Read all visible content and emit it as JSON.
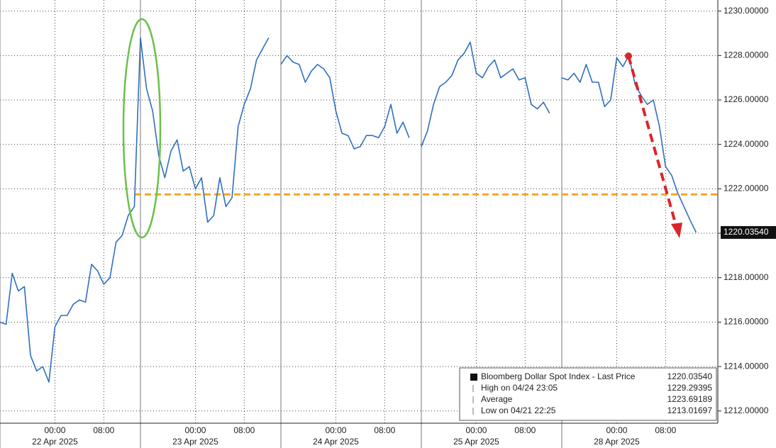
{
  "chart_data": {
    "type": "line",
    "categories": [
      null,
      null,
      null,
      null,
      null,
      null,
      null,
      null,
      null,
      "00:00",
      null,
      null,
      null,
      null,
      null,
      null,
      null,
      "08:00",
      null,
      null,
      null,
      null,
      null,
      null,
      null,
      null,
      null,
      null,
      null,
      null,
      null,
      null,
      "00:00",
      null,
      null,
      null,
      null,
      null,
      null,
      null,
      "08:00",
      null,
      null,
      null,
      null,
      null,
      null,
      null,
      null,
      null,
      null,
      null,
      null,
      null,
      null,
      "00:00",
      null,
      null,
      null,
      null,
      null,
      null,
      null,
      "08:00",
      null,
      null,
      null,
      null,
      null,
      null,
      null,
      null,
      null,
      null,
      null,
      null,
      null,
      null,
      "00:00",
      null,
      null,
      null,
      null,
      null,
      null,
      null,
      "08:00",
      null,
      null,
      null,
      null,
      null,
      null,
      null,
      null,
      null,
      null,
      null,
      null,
      null,
      null,
      "00:00",
      null,
      null,
      null,
      null,
      null,
      null,
      null,
      "08:00",
      null,
      null,
      null,
      null,
      null
    ],
    "dates": [
      null,
      null,
      null,
      null,
      null,
      null,
      null,
      null,
      null,
      "22 Apr 2025",
      null,
      null,
      null,
      null,
      null,
      null,
      null,
      null,
      null,
      null,
      null,
      null,
      null,
      null,
      null,
      null,
      null,
      null,
      null,
      null,
      null,
      null,
      "23 Apr 2025",
      null,
      null,
      null,
      null,
      null,
      null,
      null,
      null,
      null,
      null,
      null,
      null,
      null,
      null,
      null,
      null,
      null,
      null,
      null,
      null,
      null,
      null,
      "24 Apr 2025",
      null,
      null,
      null,
      null,
      null,
      null,
      null,
      null,
      null,
      null,
      null,
      null,
      null,
      null,
      null,
      null,
      null,
      null,
      null,
      null,
      null,
      null,
      "25 Apr 2025",
      null,
      null,
      null,
      null,
      null,
      null,
      null,
      null,
      null,
      null,
      null,
      null,
      null,
      null,
      null,
      null,
      null,
      null,
      null,
      null,
      null,
      null,
      "28 Apr 2025",
      null,
      null,
      null,
      null,
      null,
      null,
      null,
      null,
      null,
      null,
      null,
      null,
      null
    ],
    "series": [
      {
        "name": "Bloomberg Dollar Spot Index - Last Price",
        "color": "#2f6fbf",
        "values": [
          1216.0,
          1215.9,
          1218.2,
          1217.4,
          1217.6,
          1214.5,
          1213.8,
          1214.0,
          1213.3,
          1215.8,
          1216.3,
          1216.3,
          1216.8,
          1217.0,
          1216.9,
          1218.6,
          1218.3,
          1217.7,
          1218.0,
          1219.6,
          1219.9,
          1220.8,
          1221.2,
          1228.8,
          1226.5,
          1225.5,
          1223.5,
          1222.5,
          1223.7,
          1224.2,
          1222.8,
          1223.0,
          1222.0,
          1222.5,
          1220.5,
          1220.8,
          1222.5,
          1221.2,
          1221.6,
          1224.8,
          1225.8,
          1226.5,
          1227.8,
          1228.3,
          1228.8,
          null,
          1227.6,
          1228.0,
          1227.7,
          1227.6,
          1226.8,
          1227.3,
          1227.6,
          1227.4,
          1227.0,
          1225.5,
          1224.5,
          1224.4,
          1223.8,
          1223.9,
          1224.4,
          1224.4,
          1224.3,
          1224.8,
          1225.8,
          1224.5,
          1225.0,
          1224.3,
          null,
          1223.9,
          1224.6,
          1225.8,
          1226.6,
          1226.8,
          1227.1,
          1227.8,
          1228.1,
          1228.6,
          1227.2,
          1227.0,
          1227.5,
          1227.8,
          1227.0,
          1227.2,
          1227.4,
          1226.9,
          1227.0,
          1225.8,
          1225.6,
          1225.9,
          1225.4,
          null,
          1227.0,
          1226.9,
          1227.2,
          1226.8,
          1227.6,
          1226.8,
          1226.8,
          1225.7,
          1226.0,
          1227.9,
          1227.5,
          1228.0,
          1226.7,
          1226.2,
          1225.8,
          1226.0,
          1224.8,
          1223.0,
          1222.6,
          1221.8,
          1221.2,
          1220.6,
          1220.0354
        ]
      }
    ],
    "last_price_label": "1220.03540",
    "reference_line": {
      "value": 1221.75,
      "color": "#f5a623"
    },
    "ylim": [
      1211.45,
      1230.5
    ],
    "yticks": [
      {
        "value": 1212,
        "label": "1212.00000"
      },
      {
        "value": 1214,
        "label": "1214.00000"
      },
      {
        "value": 1216,
        "label": "1216.00000"
      },
      {
        "value": 1218,
        "label": "1218.00000"
      },
      {
        "value": 1220,
        "label": "1220.00000"
      },
      {
        "value": 1222,
        "label": "1222.00000"
      },
      {
        "value": 1224,
        "label": "1224.00000"
      },
      {
        "value": 1226,
        "label": "1226.00000"
      },
      {
        "value": 1228,
        "label": "1228.00000"
      },
      {
        "value": 1230,
        "label": "1230.00000"
      }
    ],
    "grid": true,
    "legend_stats": [
      {
        "label": "Bloomberg Dollar Spot Index - Last Price",
        "value": "1220.03540"
      },
      {
        "label": "High on 04/24 23:05",
        "value": "1229.29395"
      },
      {
        "label": "Average",
        "value": "1223.69189"
      },
      {
        "label": "Low on 04/21 22:25",
        "value": "1213.01697"
      }
    ]
  }
}
